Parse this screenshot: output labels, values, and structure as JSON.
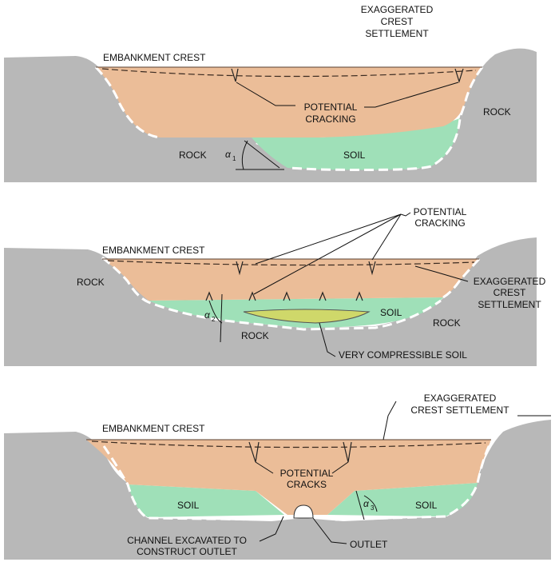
{
  "panel1": {
    "exaggerated_crest_settlement": [
      "EXAGGERATED",
      "CREST",
      "SETTLEMENT"
    ],
    "embankment_crest": "EMBANKMENT CREST",
    "potential_cracking": [
      "POTENTIAL",
      "CRACKING"
    ],
    "rock_right": "ROCK",
    "rock_left": "ROCK",
    "soil": "SOIL",
    "angle_symbol": "α",
    "angle_subscript": "1"
  },
  "panel2": {
    "potential_cracking": [
      "POTENTIAL",
      "CRACKING"
    ],
    "embankment_crest": "EMBANKMENT CREST",
    "rock_left": "ROCK",
    "exaggerated_crest_settlement": [
      "EXAGGERATED",
      "CREST",
      "SETTLEMENT"
    ],
    "soil": "SOIL",
    "rock_right": "ROCK",
    "rock_bottom": "ROCK",
    "angle_symbol": "α",
    "angle_subscript": "2",
    "very_compressible_soil": "VERY COMPRESSIBLE SOIL"
  },
  "panel3": {
    "exaggerated_crest_settlement": [
      "EXAGGERATED",
      "CREST SETTLEMENT"
    ],
    "embankment_crest": "EMBANKMENT CREST",
    "potential_cracks": [
      "POTENTIAL",
      "CRACKS"
    ],
    "soil_left": "SOIL",
    "soil_right": "SOIL",
    "angle_symbol": "α",
    "angle_subscript": "3",
    "channel_excavated": [
      "CHANNEL EXCAVATED TO",
      "CONSTRUCT OUTLET"
    ],
    "outlet": "OUTLET"
  },
  "colors": {
    "rock": "#b8b8b8",
    "embankment": "#ebbd98",
    "soil": "#9fe0b8",
    "compressible_soil": "#cfd86a"
  }
}
